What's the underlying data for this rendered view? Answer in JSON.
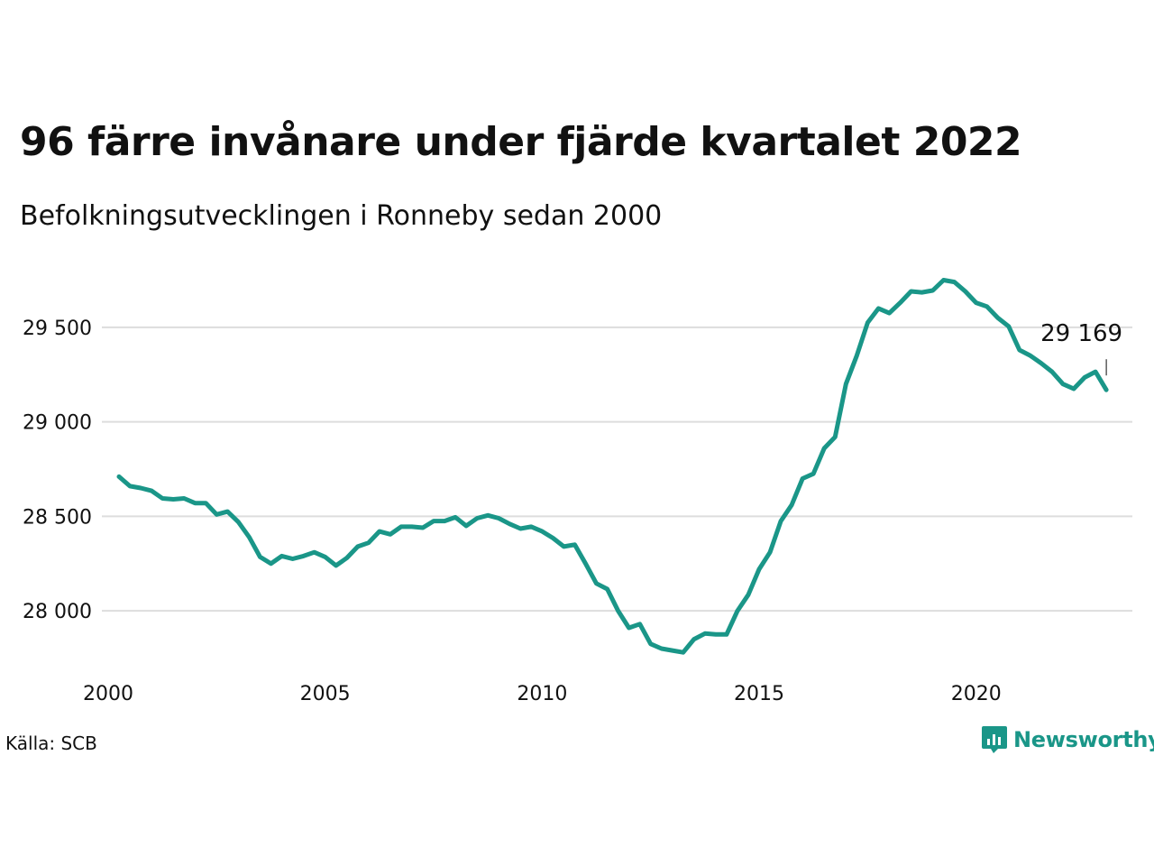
{
  "title": "96 färre invånare under fjärde kvartalet 2022",
  "subtitle": "Befolkningsutvecklingen i Ronneby sedan 2000",
  "source": "Källa: SCB",
  "brand": {
    "name": "Newsworthy",
    "color": "#1a9688"
  },
  "chart_data": {
    "type": "line",
    "title": "96 färre invånare under fjärde kvartalet 2022",
    "subtitle": "Befolkningsutvecklingen i Ronneby sedan 2000",
    "xlabel": "",
    "ylabel": "",
    "xlim": [
      2000,
      2023.6
    ],
    "ylim": [
      27700,
      29800
    ],
    "x_ticks": [
      2000,
      2005,
      2010,
      2015,
      2020
    ],
    "y_ticks": [
      28000,
      28500,
      29000,
      29500
    ],
    "y_tick_labels": [
      "28 000",
      "28 500",
      "29 000",
      "29 500"
    ],
    "grid": "horizontal",
    "line_color": "#1a9688",
    "last_value_label": "29 169",
    "series": [
      {
        "x": [
          2000.25,
          2000.5,
          2000.75,
          2001.0,
          2001.25,
          2001.5,
          2001.75,
          2002.0,
          2002.25,
          2002.5,
          2002.75,
          2003.0,
          2003.25,
          2003.5,
          2003.75,
          2004.0,
          2004.25,
          2004.5,
          2004.75,
          2005.0,
          2005.25,
          2005.5,
          2005.75,
          2006.0,
          2006.25,
          2006.5,
          2006.75,
          2007.0,
          2007.25,
          2007.5,
          2007.75,
          2008.0,
          2008.25,
          2008.5,
          2008.75,
          2009.0,
          2009.25,
          2009.5,
          2009.75,
          2010.0,
          2010.25,
          2010.5,
          2010.75,
          2011.0,
          2011.25,
          2011.5,
          2011.75,
          2012.0,
          2012.25,
          2012.5,
          2012.75,
          2013.0,
          2013.25,
          2013.5,
          2013.75,
          2014.0,
          2014.25,
          2014.5,
          2014.75,
          2015.0,
          2015.25,
          2015.5,
          2015.75,
          2016.0,
          2016.25,
          2016.5,
          2016.75,
          2017.0,
          2017.25,
          2017.5,
          2017.75,
          2018.0,
          2018.25,
          2018.5,
          2018.75,
          2019.0,
          2019.25,
          2019.5,
          2019.75,
          2020.0,
          2020.25,
          2020.5,
          2020.75,
          2021.0,
          2021.25,
          2021.5,
          2021.75,
          2022.0,
          2022.25,
          2022.5,
          2022.75,
          2023.0
        ],
        "values": [
          28710,
          28660,
          28650,
          28635,
          28595,
          28590,
          28595,
          28570,
          28570,
          28510,
          28525,
          28470,
          28390,
          28285,
          28250,
          28290,
          28275,
          28290,
          28310,
          28285,
          28240,
          28280,
          28340,
          28360,
          28420,
          28405,
          28445,
          28445,
          28440,
          28475,
          28475,
          28495,
          28450,
          28490,
          28505,
          28490,
          28460,
          28435,
          28445,
          28420,
          28385,
          28340,
          28350,
          28250,
          28145,
          28115,
          28000,
          27910,
          27930,
          27825,
          27800,
          27790,
          27780,
          27850,
          27880,
          27875,
          27875,
          28000,
          28085,
          28220,
          28310,
          28475,
          28560,
          28700,
          28725,
          28860,
          28920,
          29200,
          29350,
          29525,
          29600,
          29575,
          29630,
          29690,
          29685,
          29695,
          29750,
          29740,
          29690,
          29630,
          29610,
          29550,
          29505,
          29380,
          29350,
          29310,
          29265,
          29200,
          29175,
          29235,
          29265,
          29169
        ]
      }
    ]
  }
}
